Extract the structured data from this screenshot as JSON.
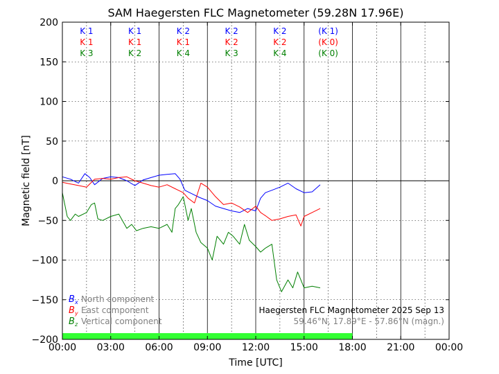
{
  "chart_data": {
    "type": "line",
    "title": "SAM Haegersten FLC Magnetometer (59.28N 17.96E)",
    "xlabel": "Time [UTC]",
    "ylabel": "Magnetic field [nT]",
    "xlim": [
      0,
      24
    ],
    "ylim": [
      -200,
      200
    ],
    "xticks": [
      0,
      3,
      6,
      9,
      12,
      15,
      18,
      21,
      24
    ],
    "xtick_labels": [
      "00:00",
      "03:00",
      "06:00",
      "09:00",
      "12:00",
      "15:00",
      "18:00",
      "21:00",
      "00:00"
    ],
    "yticks": [
      -200,
      -150,
      -100,
      -50,
      0,
      50,
      100,
      150,
      200
    ],
    "ytick_labels": [
      "−200",
      "−150",
      "−100",
      "−50",
      "0",
      "50",
      "100",
      "150",
      "200"
    ],
    "grid": true,
    "legend": [
      {
        "symbol": "B",
        "sub": "x",
        "text": "North component",
        "color": "#0000ff"
      },
      {
        "symbol": "B",
        "sub": "y",
        "text": "East component",
        "color": "#ff0000"
      },
      {
        "symbol": "B",
        "sub": "z",
        "text": "Vertical component",
        "color": "#007f00"
      }
    ],
    "legend_position": "bottom-left",
    "annotation_lines": [
      "Haegersten FLC Magnetometer 2025 Sep 13",
      "59.46°N, 17.89°E - 57.86°N (magn.)"
    ],
    "data_coverage": {
      "from": 0,
      "to": 18,
      "color": "#33ff33"
    },
    "k_indices": [
      {
        "center": 1.5,
        "labels": [
          "K 1",
          "K 1",
          "K 3"
        ]
      },
      {
        "center": 4.5,
        "labels": [
          "K 1",
          "K 1",
          "K 2"
        ]
      },
      {
        "center": 7.5,
        "labels": [
          "K 2",
          "K 1",
          "K 4"
        ]
      },
      {
        "center": 10.5,
        "labels": [
          "K 2",
          "K 2",
          "K 3"
        ]
      },
      {
        "center": 13.5,
        "labels": [
          "K 2",
          "K 2",
          "K 4"
        ]
      },
      {
        "center": 16.5,
        "labels": [
          "(K 1)",
          "(K 0)",
          "(K 0)"
        ]
      }
    ],
    "series": [
      {
        "component": "x",
        "color": "#0000ff",
        "x": [
          0,
          0.5,
          1,
          1.4,
          1.7,
          2,
          2.5,
          3,
          3.5,
          4,
          4.5,
          5,
          5.5,
          6,
          6.5,
          7,
          7.3,
          7.6,
          8,
          8.5,
          9,
          9.5,
          10,
          10.5,
          11,
          11.5,
          12,
          12.3,
          12.6,
          13,
          13.5,
          14,
          14.5,
          15,
          15.5,
          16
        ],
        "y": [
          5,
          2,
          -3,
          9,
          4,
          -5,
          3,
          5,
          4,
          0,
          -6,
          1,
          4,
          7,
          8,
          9,
          2,
          -12,
          -16,
          -21,
          -25,
          -32,
          -35,
          -38,
          -40,
          -35,
          -38,
          -22,
          -15,
          -12,
          -8,
          -3,
          -10,
          -15,
          -14,
          -5
        ]
      },
      {
        "component": "y",
        "color": "#ff0000",
        "x": [
          0,
          0.5,
          1,
          1.5,
          2,
          2.5,
          3,
          3.5,
          4,
          4.5,
          5,
          5.5,
          6,
          6.5,
          7,
          7.5,
          7.8,
          8.2,
          8.6,
          9,
          9.5,
          10,
          10.5,
          11,
          11.5,
          12,
          12.3,
          12.6,
          13,
          13.5,
          14,
          14.5,
          14.8,
          15,
          15.5,
          16
        ],
        "y": [
          -2,
          -4,
          -6,
          -8,
          2,
          3,
          2,
          4,
          5,
          0,
          -3,
          -6,
          -8,
          -5,
          -10,
          -15,
          -22,
          -28,
          -3,
          -8,
          -20,
          -30,
          -28,
          -33,
          -40,
          -32,
          -40,
          -44,
          -50,
          -48,
          -45,
          -43,
          -57,
          -45,
          -40,
          -35
        ]
      },
      {
        "component": "z",
        "color": "#007f00",
        "x": [
          0,
          0.3,
          0.5,
          0.8,
          1,
          1.5,
          1.8,
          2,
          2.2,
          2.5,
          3,
          3.5,
          4,
          4.3,
          4.6,
          5,
          5.5,
          6,
          6.5,
          6.8,
          7,
          7.2,
          7.5,
          7.8,
          8,
          8.3,
          8.6,
          9,
          9.3,
          9.6,
          10,
          10.3,
          10.6,
          11,
          11.3,
          11.6,
          12,
          12.3,
          12.6,
          13,
          13.3,
          13.6,
          14,
          14.3,
          14.6,
          15,
          15.5,
          16
        ],
        "y": [
          -15,
          -45,
          -50,
          -42,
          -45,
          -40,
          -30,
          -28,
          -48,
          -50,
          -45,
          -42,
          -60,
          -55,
          -63,
          -60,
          -58,
          -60,
          -55,
          -65,
          -35,
          -30,
          -20,
          -50,
          -35,
          -65,
          -78,
          -85,
          -100,
          -70,
          -80,
          -65,
          -70,
          -80,
          -55,
          -75,
          -83,
          -90,
          -85,
          -80,
          -125,
          -140,
          -125,
          -135,
          -115,
          -135,
          -133,
          -135
        ]
      }
    ]
  }
}
